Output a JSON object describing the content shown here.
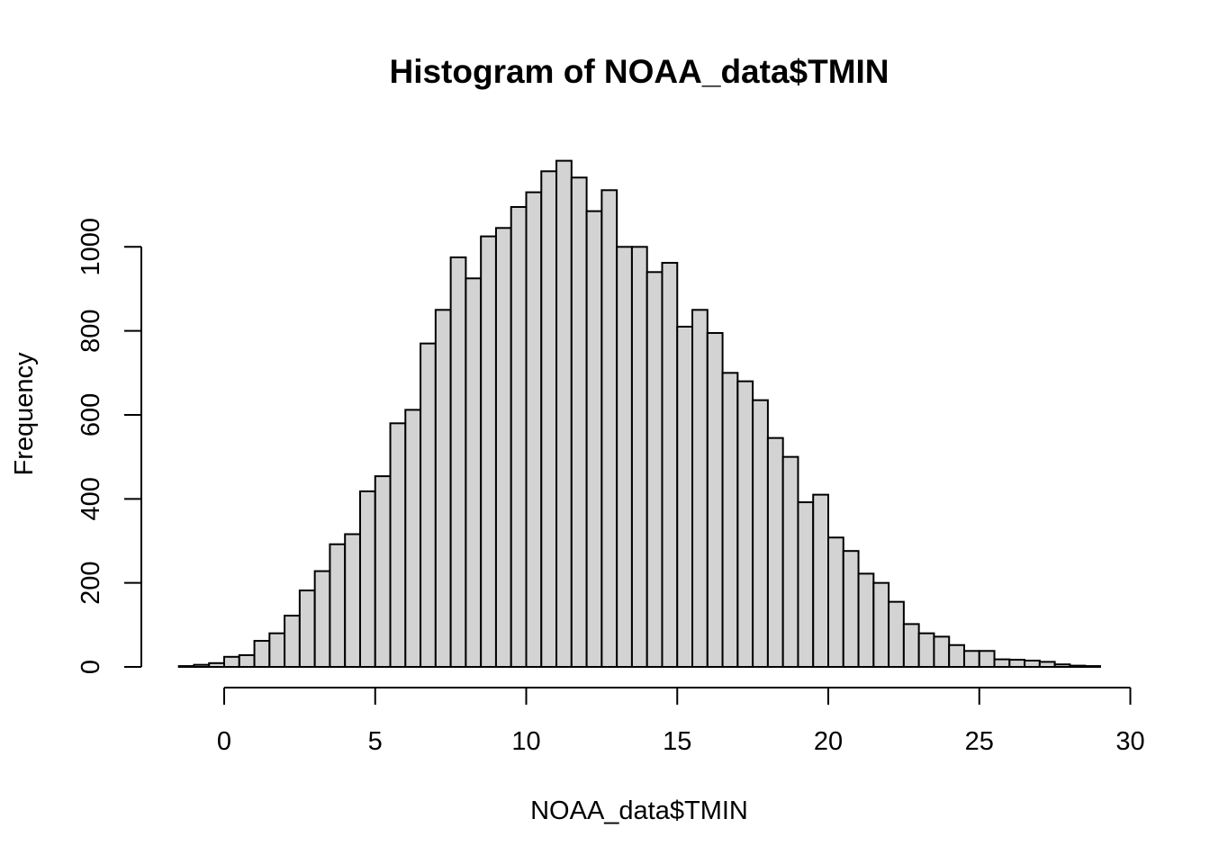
{
  "chart_data": {
    "type": "bar",
    "title": "Histogram of NOAA_data$TMIN",
    "xlabel": "NOAA_data$TMIN",
    "ylabel": "Frequency",
    "bin_width": 0.5,
    "x_start": -1.5,
    "xlim": [
      -1.5,
      29
    ],
    "ylim": [
      0,
      1200
    ],
    "x_ticks": [
      0,
      5,
      10,
      15,
      20,
      25,
      30
    ],
    "y_ticks": [
      0,
      200,
      400,
      600,
      800,
      1000
    ],
    "values": [
      2,
      5,
      9,
      24,
      28,
      62,
      80,
      122,
      182,
      228,
      292,
      316,
      418,
      454,
      580,
      612,
      770,
      850,
      975,
      925,
      1025,
      1045,
      1095,
      1130,
      1180,
      1205,
      1165,
      1085,
      1135,
      1000,
      1000,
      940,
      962,
      810,
      850,
      795,
      700,
      680,
      635,
      545,
      500,
      392,
      410,
      308,
      276,
      222,
      200,
      155,
      102,
      80,
      72,
      52,
      38,
      38,
      18,
      17,
      15,
      12,
      6,
      3,
      2
    ],
    "bar_fill": "#d3d3d3",
    "bar_stroke": "#000000",
    "background": "#ffffff",
    "grid": false,
    "legend": "none"
  }
}
